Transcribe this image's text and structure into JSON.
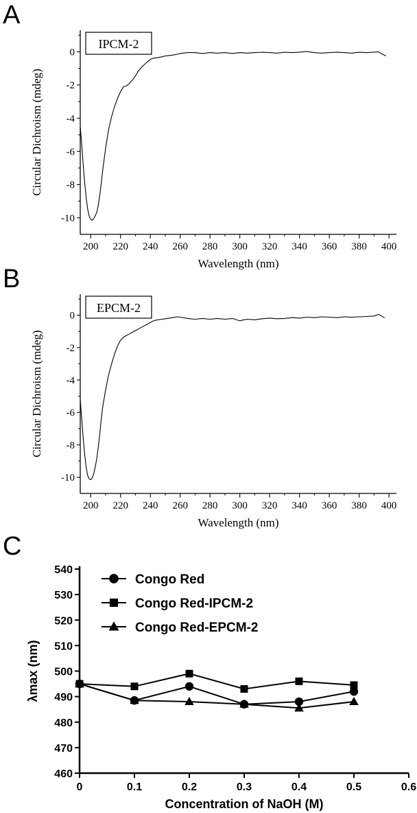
{
  "panel_labels": [
    "A",
    "B",
    "C"
  ],
  "colors": {
    "ink": "#000000",
    "background": "#ffffff"
  },
  "chart_data": [
    {
      "type": "line",
      "panel": "A",
      "inset_label": "IPCM-2",
      "xlabel": "Wavelength (nm)",
      "ylabel": "Circular Dichroism (mdeg)",
      "xlim": [
        193,
        405
      ],
      "ylim": [
        -11,
        1.3
      ],
      "xticks": [
        200,
        220,
        240,
        260,
        280,
        300,
        320,
        340,
        360,
        380,
        400
      ],
      "yticks": [
        0,
        -2,
        -4,
        -6,
        -8,
        -10
      ],
      "legend": "none",
      "grid": false,
      "series": [
        {
          "x": [
            193,
            194,
            195,
            196,
            197,
            198,
            199,
            200,
            201,
            202,
            203,
            204,
            205,
            206,
            207,
            208,
            210,
            212,
            214,
            216,
            218,
            220,
            222,
            224,
            226,
            228,
            230,
            232,
            235,
            238,
            240,
            242,
            245,
            248,
            250,
            255,
            258,
            260,
            265,
            270,
            275,
            280,
            285,
            290,
            295,
            300,
            305,
            310,
            315,
            320,
            325,
            330,
            335,
            340,
            345,
            350,
            355,
            360,
            365,
            370,
            375,
            380,
            385,
            390,
            393,
            395,
            398
          ],
          "y": [
            -4.5,
            -5.6,
            -6.8,
            -7.9,
            -8.8,
            -9.5,
            -9.9,
            -10.1,
            -10.15,
            -10.05,
            -9.9,
            -9.7,
            -9.3,
            -8.7,
            -8.0,
            -7.2,
            -5.8,
            -4.7,
            -3.9,
            -3.3,
            -2.8,
            -2.4,
            -2.1,
            -2.05,
            -1.9,
            -1.7,
            -1.45,
            -1.15,
            -0.85,
            -0.6,
            -0.45,
            -0.38,
            -0.35,
            -0.3,
            -0.25,
            -0.2,
            -0.15,
            -0.1,
            -0.05,
            -0.05,
            -0.1,
            -0.05,
            -0.08,
            -0.05,
            -0.1,
            -0.05,
            -0.08,
            -0.05,
            -0.03,
            -0.05,
            -0.08,
            -0.03,
            -0.05,
            -0.02,
            0.02,
            -0.05,
            -0.08,
            -0.05,
            -0.02,
            -0.05,
            -0.08,
            -0.03,
            -0.05,
            -0.02,
            0.0,
            -0.12,
            -0.25
          ]
        }
      ]
    },
    {
      "type": "line",
      "panel": "B",
      "inset_label": "EPCM-2",
      "xlabel": "Wavelength (nm)",
      "ylabel": "Circular Dichroism (mdeg)",
      "xlim": [
        193,
        405
      ],
      "ylim": [
        -11,
        1.3
      ],
      "xticks": [
        200,
        220,
        240,
        260,
        280,
        300,
        320,
        340,
        360,
        380,
        400
      ],
      "yticks": [
        0,
        -2,
        -4,
        -6,
        -8,
        -10
      ],
      "legend": "none",
      "grid": false,
      "series": [
        {
          "x": [
            193,
            194,
            195,
            196,
            197,
            198,
            199,
            200,
            201,
            202,
            203,
            204,
            205,
            206,
            207,
            208,
            210,
            212,
            214,
            216,
            218,
            220,
            222,
            224,
            226,
            228,
            230,
            232,
            235,
            238,
            240,
            242,
            245,
            248,
            250,
            255,
            258,
            260,
            265,
            270,
            275,
            280,
            285,
            290,
            295,
            300,
            302,
            305,
            310,
            315,
            320,
            325,
            330,
            335,
            340,
            345,
            350,
            355,
            360,
            365,
            370,
            375,
            380,
            385,
            390,
            393,
            395,
            397
          ],
          "y": [
            -5.2,
            -6.4,
            -7.6,
            -8.6,
            -9.4,
            -9.9,
            -10.1,
            -10.15,
            -10.05,
            -9.8,
            -9.4,
            -8.9,
            -8.2,
            -7.4,
            -6.5,
            -5.7,
            -4.6,
            -3.7,
            -3.0,
            -2.4,
            -1.9,
            -1.55,
            -1.35,
            -1.25,
            -1.15,
            -1.05,
            -0.95,
            -0.85,
            -0.7,
            -0.55,
            -0.45,
            -0.35,
            -0.28,
            -0.25,
            -0.22,
            -0.15,
            -0.1,
            -0.12,
            -0.2,
            -0.25,
            -0.2,
            -0.25,
            -0.2,
            -0.25,
            -0.2,
            -0.35,
            -0.3,
            -0.25,
            -0.28,
            -0.22,
            -0.18,
            -0.22,
            -0.2,
            -0.15,
            -0.18,
            -0.12,
            -0.15,
            -0.1,
            -0.12,
            -0.15,
            -0.1,
            -0.12,
            -0.1,
            -0.08,
            -0.05,
            0.05,
            -0.05,
            -0.15
          ]
        }
      ]
    },
    {
      "type": "line",
      "panel": "C",
      "xlabel": "Concentration of NaOH (M)",
      "ylabel": "λmax (nm)",
      "xlim": [
        0,
        0.6
      ],
      "ylim": [
        460,
        540
      ],
      "xticks": [
        0,
        0.1,
        0.2,
        0.3,
        0.4,
        0.5,
        0.6
      ],
      "xticklabels": [
        "0",
        "0.1",
        "0.2",
        "0.3",
        "0.4",
        "0.5",
        "0.6"
      ],
      "yticks": [
        460,
        470,
        480,
        490,
        500,
        510,
        520,
        530,
        540
      ],
      "legend": "top-left",
      "grid": false,
      "x": [
        0,
        0.1,
        0.2,
        0.3,
        0.4,
        0.5
      ],
      "series": [
        {
          "name": "Congo Red",
          "marker": "circle",
          "values": [
            495,
            488.5,
            494,
            487,
            488,
            492
          ]
        },
        {
          "name": "Congo Red-IPCM-2",
          "marker": "square",
          "values": [
            495,
            494,
            499,
            493,
            496,
            494.5
          ]
        },
        {
          "name": "Congo Red-EPCM-2",
          "marker": "triangle",
          "values": [
            495,
            488.5,
            488,
            487,
            485.5,
            488
          ]
        }
      ]
    }
  ]
}
